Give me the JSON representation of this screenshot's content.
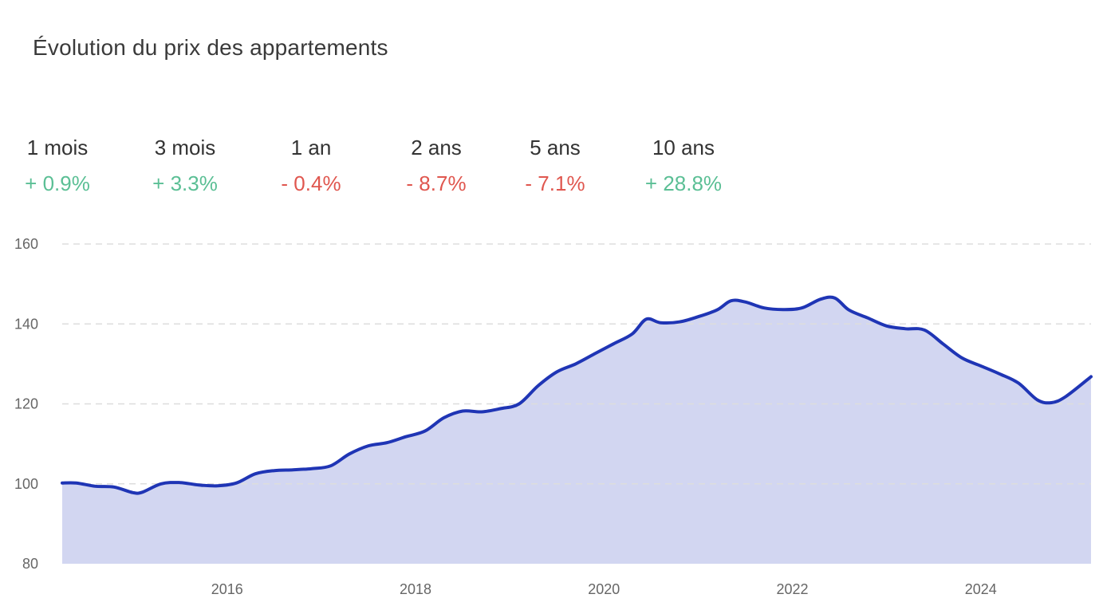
{
  "title": "Évolution du prix des appartements",
  "stats": [
    {
      "label": "1 mois",
      "value": "+ 0.9%",
      "trend": "up"
    },
    {
      "label": "3 mois",
      "value": "+ 3.3%",
      "trend": "up"
    },
    {
      "label": "1 an",
      "value": "- 0.4%",
      "trend": "down"
    },
    {
      "label": "2 ans",
      "value": "- 8.7%",
      "trend": "down"
    },
    {
      "label": "5 ans",
      "value": "- 7.1%",
      "trend": "down"
    },
    {
      "label": "10 ans",
      "value": "+ 28.8%",
      "trend": "up"
    }
  ],
  "colors": {
    "up": "#5bbf95",
    "down": "#e0574f",
    "line": "#1f35b5",
    "fill": "#d2d6f1",
    "grid": "#dddddd"
  },
  "chart_data": {
    "type": "area",
    "title": "",
    "xlabel": "",
    "ylabel": "",
    "xlim": [
      2014.25,
      2025.17
    ],
    "ylim": [
      80,
      160
    ],
    "yticks": [
      80,
      100,
      120,
      140,
      160
    ],
    "xticks": [
      2016,
      2018,
      2020,
      2022,
      2024
    ],
    "grid": true,
    "series": [
      {
        "x": [
          2014.25,
          2014.4,
          2014.6,
          2014.8,
          2015.0,
          2015.1,
          2015.3,
          2015.5,
          2015.7,
          2015.9,
          2016.1,
          2016.3,
          2016.5,
          2016.7,
          2016.9,
          2017.1,
          2017.3,
          2017.5,
          2017.7,
          2017.9,
          2018.1,
          2018.3,
          2018.5,
          2018.7,
          2018.9,
          2019.1,
          2019.3,
          2019.5,
          2019.7,
          2019.9,
          2020.1,
          2020.3,
          2020.45,
          2020.6,
          2020.8,
          2021.0,
          2021.2,
          2021.35,
          2021.5,
          2021.7,
          2021.9,
          2022.1,
          2022.3,
          2022.45,
          2022.6,
          2022.8,
          2023.0,
          2023.2,
          2023.4,
          2023.6,
          2023.8,
          2024.0,
          2024.2,
          2024.4,
          2024.6,
          2024.75,
          2024.9,
          2025.17
        ],
        "y": [
          100.2,
          100.2,
          99.4,
          99.2,
          97.8,
          97.9,
          100.0,
          100.3,
          99.7,
          99.5,
          100.2,
          102.5,
          103.3,
          103.5,
          103.8,
          104.5,
          107.5,
          109.5,
          110.3,
          111.8,
          113.2,
          116.5,
          118.2,
          118.0,
          118.8,
          120.0,
          124.5,
          128.0,
          130.0,
          132.5,
          135.0,
          137.5,
          141.2,
          140.3,
          140.5,
          141.8,
          143.5,
          145.8,
          145.5,
          144.0,
          143.6,
          144.0,
          146.2,
          146.5,
          143.5,
          141.5,
          139.5,
          138.8,
          138.5,
          135.0,
          131.5,
          129.5,
          127.5,
          125.2,
          121.0,
          120.3,
          121.8,
          126.8
        ]
      }
    ]
  }
}
